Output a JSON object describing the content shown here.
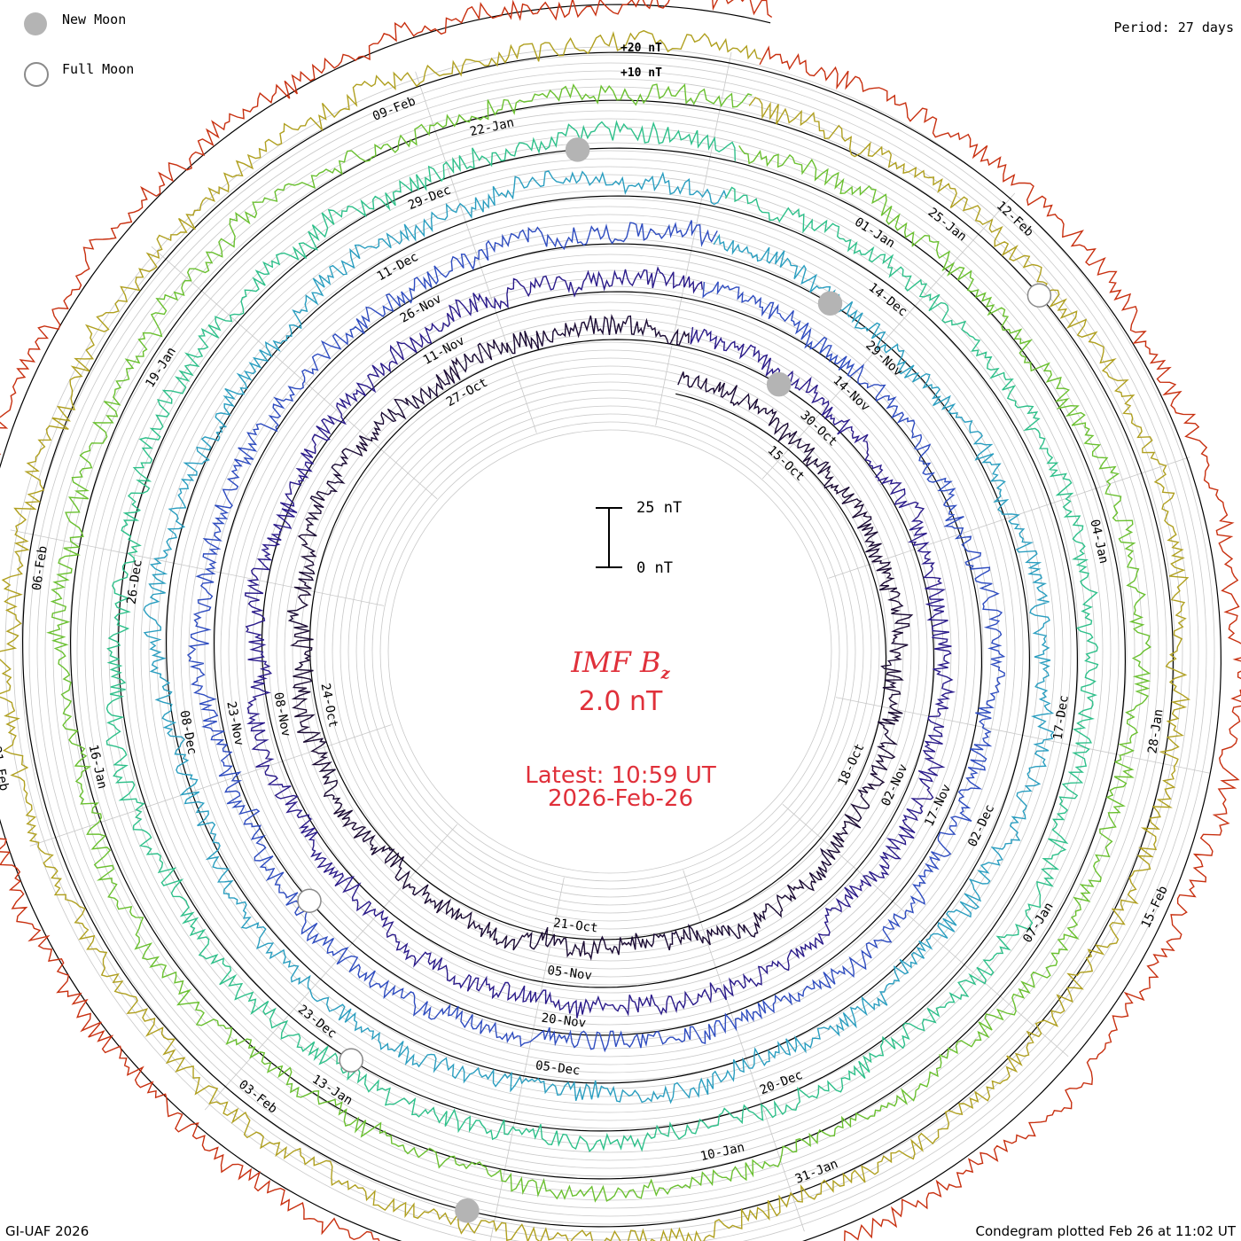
{
  "chart_data": {
    "type": "line",
    "title": "IMF Bz",
    "title_subscript": "z",
    "title_main": "IMF B",
    "current_value": "2.0 nT",
    "latest_time": "Latest: 10:59 UT",
    "latest_date": "2026-Feb-26",
    "period": "Period: 27 days",
    "scale_bar": {
      "top_label": "25 nT",
      "bottom_label": "0 nT",
      "top_value": 25,
      "bottom_value": 0
    },
    "ring_scale_labels": [
      "+20 nT",
      "+10 nT"
    ],
    "legend": [
      {
        "label": "New Moon",
        "fill": "#b4b4b4",
        "stroke": "#b4b4b4"
      },
      {
        "label": "Full Moon",
        "fill": "#ffffff",
        "stroke": "#8a8a8a"
      }
    ],
    "rotations": [
      {
        "color": "#1a0a33",
        "dates": [
          "15-Oct",
          "18-Oct",
          "21-Oct",
          "24-Oct",
          "27-Oct"
        ]
      },
      {
        "color": "#2a1a8a",
        "dates": [
          "30-Oct",
          "02-Nov",
          "05-Nov",
          "08-Nov",
          "11-Nov"
        ]
      },
      {
        "color": "#2e4cc0",
        "dates": [
          "14-Nov",
          "17-Nov",
          "20-Nov",
          "23-Nov",
          "26-Nov"
        ]
      },
      {
        "color": "#2a9ec0",
        "dates": [
          "29-Nov",
          "02-Dec",
          "05-Dec",
          "08-Dec",
          "11-Dec"
        ]
      },
      {
        "color": "#2ec08a",
        "dates": [
          "14-Dec",
          "17-Dec",
          "20-Dec",
          "23-Dec",
          "26-Dec",
          "29-Dec"
        ]
      },
      {
        "color": "#6ac030",
        "dates": [
          "01-Jan",
          "04-Jan",
          "07-Jan",
          "10-Jan",
          "13-Jan",
          "16-Jan",
          "19-Jan",
          "22-Jan"
        ]
      },
      {
        "color": "#b0a020",
        "dates": [
          "25-Jan",
          "28-Jan",
          "31-Jan",
          "03-Feb",
          "06-Feb",
          "09-Feb"
        ]
      },
      {
        "color": "#c83010",
        "dates": [
          "12-Feb",
          "15-Feb",
          "18-Feb",
          "21-Feb"
        ]
      }
    ],
    "credit_left": "GI-UAF 2026",
    "credit_right": "Condegram plotted Feb 26 at 11:02 UT"
  }
}
